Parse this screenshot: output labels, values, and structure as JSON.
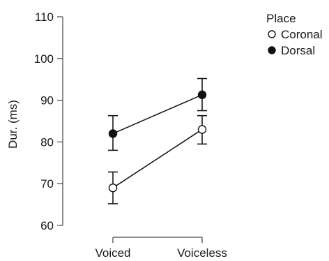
{
  "chart_data": {
    "type": "line",
    "title": "",
    "xlabel": "",
    "ylabel": "Dur. (ms)",
    "categories": [
      "Voiced",
      "Voiceless"
    ],
    "ylim": [
      60,
      110
    ],
    "yticks": [
      60,
      70,
      80,
      90,
      100,
      110
    ],
    "grid": false,
    "legend": {
      "title": "Place",
      "position": "top-right"
    },
    "series": [
      {
        "name": "Coronal",
        "marker": "open-circle",
        "values": [
          69,
          83
        ],
        "error_low": [
          65.2,
          79.5
        ],
        "error_high": [
          72.8,
          86.3
        ]
      },
      {
        "name": "Dorsal",
        "marker": "filled-circle",
        "values": [
          82,
          91.3
        ],
        "error_low": [
          78,
          87.5
        ],
        "error_high": [
          86.3,
          95.2
        ]
      }
    ]
  }
}
